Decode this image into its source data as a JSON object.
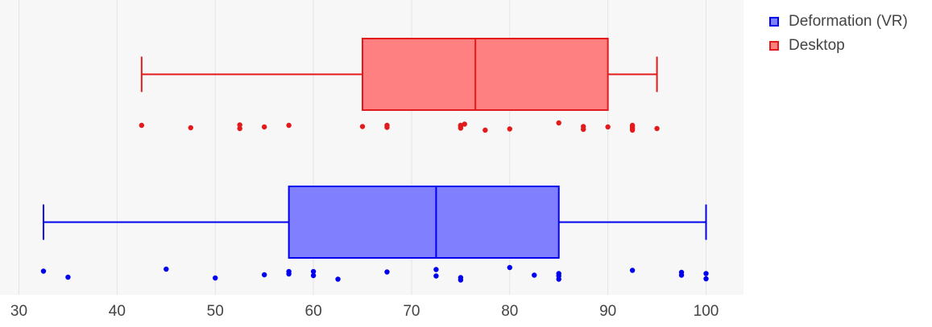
{
  "chart_data": {
    "type": "box",
    "xlim": [
      29,
      104
    ],
    "x_ticks": [
      30,
      40,
      50,
      60,
      70,
      80,
      90,
      100
    ],
    "grid": true,
    "legend_position": "top-right",
    "series": [
      {
        "name": "Desktop",
        "color": "#e31a1c",
        "fill": "#ff8080",
        "min": 42.5,
        "q1": 65,
        "median": 76.5,
        "q3": 90,
        "max": 95,
        "points": [
          {
            "x": 42.5,
            "y": 0.4
          },
          {
            "x": 47.5,
            "y": 0.1
          },
          {
            "x": 52.5,
            "y": 0.45
          },
          {
            "x": 52.5,
            "y": 0.0
          },
          {
            "x": 55,
            "y": 0.2
          },
          {
            "x": 57.5,
            "y": 0.4
          },
          {
            "x": 65,
            "y": 0.25
          },
          {
            "x": 67.5,
            "y": 0.4
          },
          {
            "x": 67.5,
            "y": 0.15
          },
          {
            "x": 75,
            "y": 0.4
          },
          {
            "x": 75,
            "y": 0.25
          },
          {
            "x": 75,
            "y": 0.05
          },
          {
            "x": 75.4,
            "y": 0.55
          },
          {
            "x": 77.5,
            "y": -0.2
          },
          {
            "x": 80,
            "y": -0.05
          },
          {
            "x": 85,
            "y": 0.7
          },
          {
            "x": 87.5,
            "y": 0.25
          },
          {
            "x": 87.5,
            "y": -0.1
          },
          {
            "x": 90,
            "y": 0.2
          },
          {
            "x": 92.5,
            "y": 0.4
          },
          {
            "x": 92.5,
            "y": 0.2
          },
          {
            "x": 92.5,
            "y": 0.0
          },
          {
            "x": 92.5,
            "y": -0.2
          },
          {
            "x": 95,
            "y": 0.0
          }
        ]
      },
      {
        "name": "Deformation (VR)",
        "color": "#0000ee",
        "fill": "#8080ff",
        "min": 32.5,
        "q1": 57.5,
        "median": 72.5,
        "q3": 85,
        "max": 100,
        "points": [
          {
            "x": 32.5,
            "y": 0.85
          },
          {
            "x": 35,
            "y": 0.1
          },
          {
            "x": 45,
            "y": 1.1
          },
          {
            "x": 50,
            "y": 0.0
          },
          {
            "x": 55,
            "y": 0.4
          },
          {
            "x": 57.5,
            "y": 0.8
          },
          {
            "x": 57.5,
            "y": 0.5
          },
          {
            "x": 60,
            "y": 0.8
          },
          {
            "x": 60,
            "y": 0.3
          },
          {
            "x": 62.5,
            "y": -0.15
          },
          {
            "x": 67.5,
            "y": 0.75
          },
          {
            "x": 72.5,
            "y": 1.05
          },
          {
            "x": 72.5,
            "y": 0.25
          },
          {
            "x": 75,
            "y": 0.05
          },
          {
            "x": 75,
            "y": -0.25
          },
          {
            "x": 80,
            "y": 1.3
          },
          {
            "x": 82.5,
            "y": 0.35
          },
          {
            "x": 85,
            "y": 0.55
          },
          {
            "x": 85,
            "y": 0.25
          },
          {
            "x": 85,
            "y": -0.15
          },
          {
            "x": 92.5,
            "y": 0.95
          },
          {
            "x": 97.5,
            "y": 0.7
          },
          {
            "x": 97.5,
            "y": 0.35
          },
          {
            "x": 100,
            "y": 0.55
          },
          {
            "x": 100,
            "y": -0.1
          }
        ]
      }
    ]
  },
  "legend": {
    "items": [
      {
        "label": "Deformation (VR)",
        "color": "#0000ee",
        "fill": "#8080ff"
      },
      {
        "label": "Desktop",
        "color": "#e31a1c",
        "fill": "#ff8080"
      }
    ]
  }
}
